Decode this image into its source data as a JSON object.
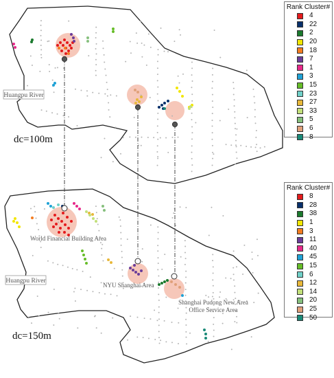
{
  "panels": [
    {
      "id": "top",
      "dc_label": "dc=100m",
      "river_label": "Huangpu River",
      "legend": {
        "title": "Rank Cluster#",
        "items": [
          {
            "label": "4",
            "color": "#e41a1c"
          },
          {
            "label": "22",
            "color": "#08306b"
          },
          {
            "label": "2",
            "color": "#1b7a2e"
          },
          {
            "label": "20",
            "color": "#f2e600"
          },
          {
            "label": "18",
            "color": "#f47c20"
          },
          {
            "label": "7",
            "color": "#6a3d9a"
          },
          {
            "label": "1",
            "color": "#e7298a"
          },
          {
            "label": "3",
            "color": "#1fa2d6"
          },
          {
            "label": "15",
            "color": "#66bd28"
          },
          {
            "label": "23",
            "color": "#6fd0c8"
          },
          {
            "label": "27",
            "color": "#e8b83a"
          },
          {
            "label": "33",
            "color": "#c2e07a"
          },
          {
            "label": "5",
            "color": "#86c07d"
          },
          {
            "label": "6",
            "color": "#e0a07a"
          },
          {
            "label": "8",
            "color": "#1a8a78"
          }
        ]
      }
    },
    {
      "id": "bottom",
      "dc_label": "dc=150m",
      "river_label": "Huangpu River",
      "area_labels": {
        "world_financial": "World Financial Building Area",
        "nyu": "NYU Shanghai Area",
        "pudong_1": "Shanghai Pudong New Area",
        "pudong_2": "Office Service Area"
      },
      "legend": {
        "title": "Rank Cluster#",
        "items": [
          {
            "label": "8",
            "color": "#e41a1c"
          },
          {
            "label": "28",
            "color": "#08306b"
          },
          {
            "label": "38",
            "color": "#1b7a2e"
          },
          {
            "label": "1",
            "color": "#f2e600"
          },
          {
            "label": "3",
            "color": "#f47c20"
          },
          {
            "label": "11",
            "color": "#6a3d9a"
          },
          {
            "label": "40",
            "color": "#e7298a"
          },
          {
            "label": "45",
            "color": "#1fa2d6"
          },
          {
            "label": "15",
            "color": "#66bd28"
          },
          {
            "label": "6",
            "color": "#6fd0c8"
          },
          {
            "label": "12",
            "color": "#e8b83a"
          },
          {
            "label": "14",
            "color": "#c2e07a"
          },
          {
            "label": "20",
            "color": "#86c07d"
          },
          {
            "label": "25",
            "color": "#e0a07a"
          },
          {
            "label": "50",
            "color": "#1a8a78"
          }
        ]
      }
    }
  ],
  "style": {
    "highlight_fill": "#f4b9a8",
    "background_point": "#b5b5b5",
    "boundary": "#222222",
    "connector": "#444444"
  }
}
